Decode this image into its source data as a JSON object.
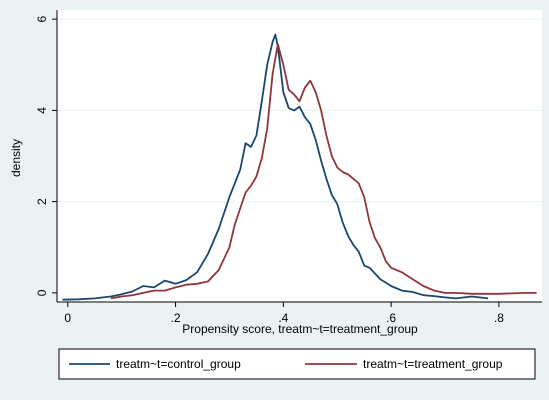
{
  "chart_data": {
    "type": "line",
    "title": "",
    "xlabel": "Propensity score, treatm~t=treatment_group",
    "ylabel": "density",
    "xlim": [
      -0.02,
      0.88
    ],
    "ylim": [
      -0.2,
      6.2
    ],
    "x_ticks": [
      0,
      0.2,
      0.4,
      0.6,
      0.8
    ],
    "x_tick_labels": [
      "0",
      ".2",
      ".4",
      ".6",
      ".8"
    ],
    "y_ticks": [
      0,
      2,
      4,
      6
    ],
    "y_tick_labels": [
      "0",
      "2",
      "4",
      "6"
    ],
    "grid": "horizontal",
    "legend_position": "bottom",
    "colors": {
      "control": "#1a476f",
      "treatment": "#90353b",
      "plot_bg": "#ffffff",
      "outer_bg": "#eaf2f3",
      "grid": "#eaf2f3"
    },
    "series": [
      {
        "name": "treatm~t=control_group",
        "color": "#1a476f",
        "points": [
          [
            -0.01,
            -0.15
          ],
          [
            0.02,
            -0.14
          ],
          [
            0.05,
            -0.12
          ],
          [
            0.08,
            -0.08
          ],
          [
            0.1,
            -0.03
          ],
          [
            0.12,
            0.03
          ],
          [
            0.14,
            0.15
          ],
          [
            0.16,
            0.12
          ],
          [
            0.18,
            0.27
          ],
          [
            0.2,
            0.2
          ],
          [
            0.22,
            0.28
          ],
          [
            0.24,
            0.45
          ],
          [
            0.26,
            0.85
          ],
          [
            0.28,
            1.4
          ],
          [
            0.3,
            2.1
          ],
          [
            0.32,
            2.7
          ],
          [
            0.33,
            3.28
          ],
          [
            0.34,
            3.2
          ],
          [
            0.35,
            3.45
          ],
          [
            0.36,
            4.2
          ],
          [
            0.37,
            5.0
          ],
          [
            0.38,
            5.5
          ],
          [
            0.385,
            5.66
          ],
          [
            0.39,
            5.4
          ],
          [
            0.4,
            4.4
          ],
          [
            0.41,
            4.05
          ],
          [
            0.42,
            4.0
          ],
          [
            0.43,
            4.08
          ],
          [
            0.44,
            3.85
          ],
          [
            0.45,
            3.7
          ],
          [
            0.46,
            3.35
          ],
          [
            0.47,
            2.9
          ],
          [
            0.48,
            2.5
          ],
          [
            0.49,
            2.15
          ],
          [
            0.5,
            1.95
          ],
          [
            0.51,
            1.55
          ],
          [
            0.52,
            1.25
          ],
          [
            0.53,
            1.05
          ],
          [
            0.54,
            0.9
          ],
          [
            0.55,
            0.6
          ],
          [
            0.56,
            0.55
          ],
          [
            0.58,
            0.3
          ],
          [
            0.6,
            0.15
          ],
          [
            0.62,
            0.05
          ],
          [
            0.64,
            0.02
          ],
          [
            0.66,
            -0.05
          ],
          [
            0.68,
            -0.07
          ],
          [
            0.7,
            -0.1
          ],
          [
            0.72,
            -0.12
          ],
          [
            0.75,
            -0.08
          ],
          [
            0.78,
            -0.12
          ]
        ]
      },
      {
        "name": "treatm~t=treatment_group",
        "color": "#90353b",
        "points": [
          [
            0.08,
            -0.12
          ],
          [
            0.1,
            -0.08
          ],
          [
            0.12,
            -0.05
          ],
          [
            0.14,
            0.0
          ],
          [
            0.16,
            0.05
          ],
          [
            0.18,
            0.05
          ],
          [
            0.2,
            0.12
          ],
          [
            0.22,
            0.18
          ],
          [
            0.24,
            0.2
          ],
          [
            0.26,
            0.25
          ],
          [
            0.28,
            0.5
          ],
          [
            0.3,
            1.0
          ],
          [
            0.31,
            1.5
          ],
          [
            0.32,
            1.85
          ],
          [
            0.33,
            2.2
          ],
          [
            0.34,
            2.35
          ],
          [
            0.35,
            2.55
          ],
          [
            0.36,
            2.95
          ],
          [
            0.37,
            3.6
          ],
          [
            0.38,
            4.8
          ],
          [
            0.39,
            5.45
          ],
          [
            0.4,
            5.0
          ],
          [
            0.41,
            4.45
          ],
          [
            0.42,
            4.35
          ],
          [
            0.43,
            4.2
          ],
          [
            0.44,
            4.5
          ],
          [
            0.45,
            4.65
          ],
          [
            0.46,
            4.4
          ],
          [
            0.47,
            4.0
          ],
          [
            0.48,
            3.45
          ],
          [
            0.49,
            3.0
          ],
          [
            0.5,
            2.75
          ],
          [
            0.51,
            2.65
          ],
          [
            0.52,
            2.6
          ],
          [
            0.53,
            2.5
          ],
          [
            0.54,
            2.4
          ],
          [
            0.55,
            2.1
          ],
          [
            0.56,
            1.55
          ],
          [
            0.57,
            1.2
          ],
          [
            0.58,
            1.0
          ],
          [
            0.59,
            0.7
          ],
          [
            0.6,
            0.55
          ],
          [
            0.62,
            0.45
          ],
          [
            0.64,
            0.3
          ],
          [
            0.66,
            0.15
          ],
          [
            0.68,
            0.05
          ],
          [
            0.7,
            0.0
          ],
          [
            0.72,
            0.0
          ],
          [
            0.75,
            -0.02
          ],
          [
            0.8,
            -0.02
          ],
          [
            0.85,
            0.0
          ],
          [
            0.87,
            0.0
          ]
        ]
      }
    ]
  }
}
